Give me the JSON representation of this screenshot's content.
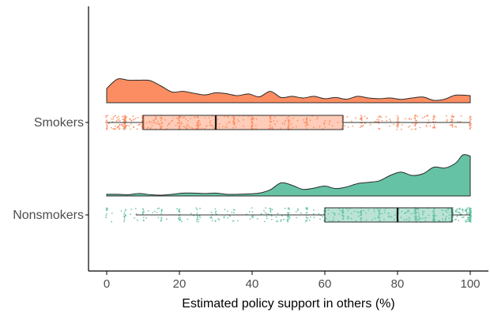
{
  "chart_data": {
    "type": "raincloud",
    "xlabel": "Estimated policy support in others (%)",
    "xlim": [
      0,
      100
    ],
    "x_ticks": [
      "0",
      "20",
      "40",
      "60",
      "80",
      "100"
    ],
    "grid": false,
    "legend": "none",
    "colors": {
      "Smokers": "#fc8d62",
      "Nonsmokers": "#66c2a5"
    },
    "groups": [
      {
        "name": "Smokers",
        "color": "#fc8d62",
        "box": {
          "whisker_low": 0,
          "q1": 10,
          "median": 30,
          "q3": 65,
          "whisker_high": 100
        },
        "density_x": [
          0,
          3,
          6,
          9,
          12,
          15,
          18,
          21,
          24,
          27,
          30,
          33,
          36,
          39,
          42,
          45,
          48,
          51,
          54,
          57,
          60,
          63,
          66,
          69,
          72,
          75,
          78,
          81,
          84,
          87,
          90,
          93,
          96,
          100
        ],
        "density_y": [
          0.6,
          1.0,
          0.95,
          0.95,
          0.93,
          0.7,
          0.45,
          0.48,
          0.4,
          0.33,
          0.42,
          0.38,
          0.3,
          0.37,
          0.25,
          0.48,
          0.22,
          0.27,
          0.2,
          0.27,
          0.17,
          0.22,
          0.15,
          0.27,
          0.2,
          0.17,
          0.2,
          0.14,
          0.2,
          0.24,
          0.1,
          0.15,
          0.32,
          0.3
        ]
      },
      {
        "name": "Nonsmokers",
        "color": "#66c2a5",
        "box": {
          "whisker_low": 8,
          "q1": 60,
          "median": 80,
          "q3": 95,
          "whisker_high": 100
        },
        "density_x": [
          0,
          3,
          6,
          9,
          12,
          15,
          18,
          21,
          24,
          27,
          30,
          33,
          36,
          39,
          42,
          45,
          48,
          51,
          54,
          57,
          60,
          63,
          66,
          69,
          72,
          75,
          78,
          81,
          84,
          87,
          90,
          93,
          96,
          98,
          100
        ],
        "density_y": [
          0.04,
          0.04,
          0.03,
          0.06,
          0.03,
          0.02,
          0.04,
          0.07,
          0.07,
          0.06,
          0.07,
          0.04,
          0.04,
          0.05,
          0.07,
          0.15,
          0.32,
          0.26,
          0.16,
          0.19,
          0.24,
          0.18,
          0.22,
          0.3,
          0.33,
          0.37,
          0.5,
          0.58,
          0.5,
          0.54,
          0.7,
          0.68,
          0.8,
          1.0,
          0.97
        ]
      }
    ]
  }
}
